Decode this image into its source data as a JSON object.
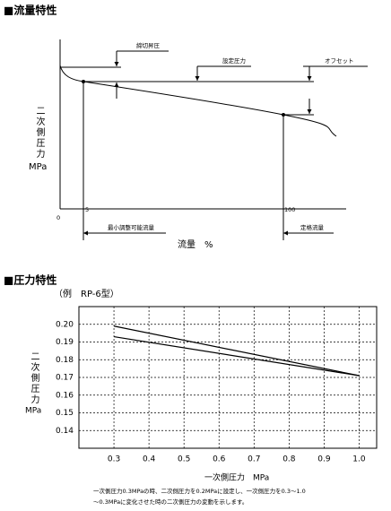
{
  "flow_diagram": {
    "title": "■流量特性",
    "y_label": "二次側圧力",
    "y_unit": "MPa",
    "x_label": "流量　%",
    "shutoff": "締切昇圧",
    "setting": "設定圧力",
    "offset": "オフセット",
    "min_flow": "最小調整可能流量",
    "rated_flow": "定格流量",
    "origin": "0",
    "tick_min": "5",
    "tick_max": "100"
  },
  "chart_data": {
    "type": "line",
    "title": "■圧力特性",
    "subtitle": "（例　RP-6型）",
    "y_label": "二次側圧力",
    "y_unit": "MPa",
    "x_label": "一次側圧力　MPa",
    "x": [
      0.3,
      1.0
    ],
    "series": [
      {
        "color": "#000000",
        "values": [
          0.199,
          0.171
        ]
      },
      {
        "color": "#000000",
        "values": [
          0.193,
          0.171
        ]
      }
    ],
    "xlim": [
      0.2,
      1.05
    ],
    "ylim": [
      0.13,
      0.21
    ],
    "xticks": [
      0.3,
      0.4,
      0.5,
      0.6,
      0.7,
      0.8,
      0.9,
      {
        "value": 1.0,
        "label": "1.0"
      }
    ],
    "yticks": [
      0.14,
      0.15,
      0.16,
      0.17,
      0.18,
      0.19,
      {
        "value": 0.2,
        "label": "0.20"
      }
    ],
    "grid": true,
    "notes": [
      "一次側圧力0.3MPaの時、二次側圧力を0.2MPaに設定し、一次側圧力を0.3～1.0",
      "～0.3MPaに変化させた時の二次側圧力の変動を示します。"
    ]
  }
}
